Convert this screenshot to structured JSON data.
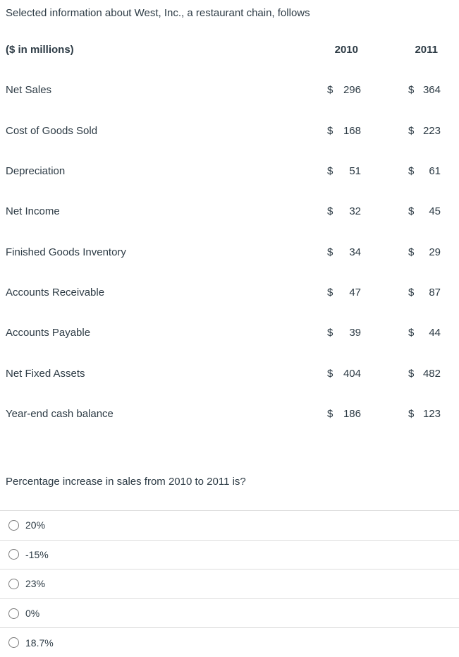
{
  "intro_text": "Selected information about West, Inc., a restaurant chain, follows",
  "table": {
    "currency": "$",
    "header": {
      "label": "($ in millions)",
      "col_2010": "2010",
      "col_2011": "2011"
    },
    "rows": [
      {
        "label": "Net Sales",
        "y2010": "296",
        "y2011": "364"
      },
      {
        "label": "Cost of Goods Sold",
        "y2010": "168",
        "y2011": "223"
      },
      {
        "label": "Depreciation",
        "y2010": "51",
        "y2011": "61"
      },
      {
        "label": "Net Income",
        "y2010": "32",
        "y2011": "45"
      },
      {
        "label": "Finished Goods Inventory",
        "y2010": "34",
        "y2011": "29"
      },
      {
        "label": "Accounts Receivable",
        "y2010": "47",
        "y2011": "87"
      },
      {
        "label": "Accounts Payable",
        "y2010": "39",
        "y2011": "44"
      },
      {
        "label": "Net Fixed Assets",
        "y2010": "404",
        "y2011": "482"
      },
      {
        "label": "Year-end cash balance",
        "y2010": "186",
        "y2011": "123"
      }
    ]
  },
  "question_text": "Percentage increase in sales from 2010 to 2011 is?",
  "options": [
    {
      "label": "20%",
      "selected": false
    },
    {
      "label": "-15%",
      "selected": false
    },
    {
      "label": "23%",
      "selected": false
    },
    {
      "label": "0%",
      "selected": false
    },
    {
      "label": "18.7%",
      "selected": false
    }
  ],
  "colors": {
    "text": "#2d3b45",
    "divider": "#dddddd",
    "radio_border": "#7b7b7b",
    "background": "#ffffff"
  }
}
